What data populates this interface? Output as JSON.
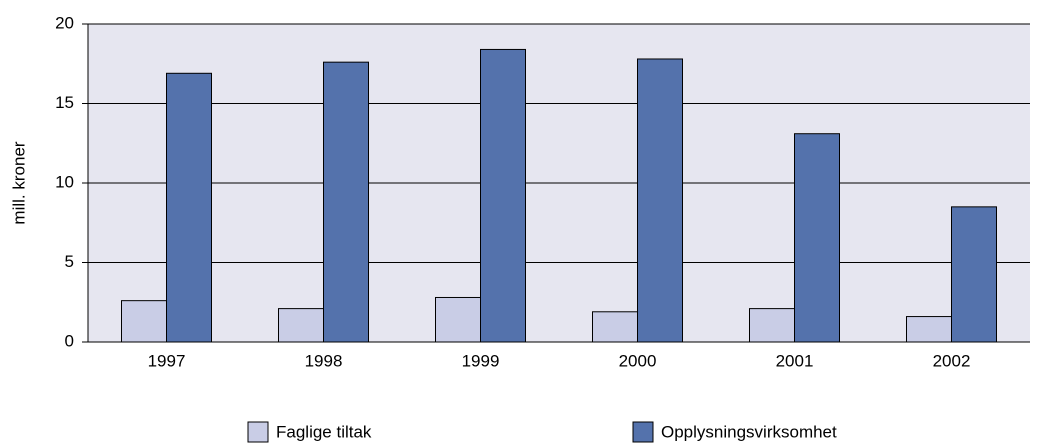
{
  "chart_data": {
    "type": "bar",
    "y_label": "mill. kroner",
    "categories": [
      "1997",
      "1998",
      "1999",
      "2000",
      "2001",
      "2002"
    ],
    "series": [
      {
        "name": "Faglige tiltak",
        "color": "#c9cde6",
        "values": [
          2.6,
          2.1,
          2.8,
          1.9,
          2.1,
          1.6
        ]
      },
      {
        "name": "Opplysningsvirksomhet",
        "color": "#5472ac",
        "values": [
          16.9,
          17.6,
          18.4,
          17.8,
          13.1,
          8.5
        ]
      }
    ],
    "ylim": [
      0,
      20
    ],
    "yticks": [
      0,
      5,
      10,
      15,
      20
    ],
    "grid": true
  }
}
